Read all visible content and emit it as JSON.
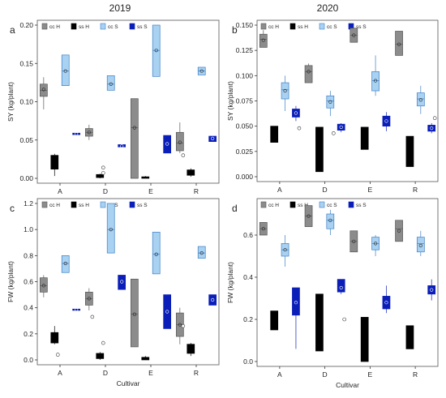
{
  "headers": {
    "left": "2019",
    "right": "2020"
  },
  "series_colors": {
    "cc H": "#8c8c8c",
    "ss H": "#000000",
    "cc S": "#a9d2f2",
    "ss S": "#0b1fb8"
  },
  "chart_data": [
    {
      "panel_label": "a",
      "type": "box",
      "ylabel": "SY (kg/plant)",
      "xlabel": "",
      "ylim": [
        0,
        0.2
      ],
      "yticks": [
        0.0,
        0.05,
        0.1,
        0.15,
        0.2
      ],
      "ytick_labels": [
        "0.00",
        "0.05",
        "0.10",
        "0.15",
        "0.20"
      ],
      "categories": [
        "A",
        "D",
        "E",
        "R"
      ],
      "legend": [
        "cc H",
        "ss H",
        "cc S",
        "ss S"
      ],
      "series": [
        {
          "name": "cc H",
          "values": [
            {
              "q1": 0.107,
              "q3": 0.123,
              "median": 0.115,
              "mean": 0.116,
              "lo": 0.09,
              "hi": 0.132
            },
            {
              "q1": 0.055,
              "q3": 0.065,
              "median": 0.06,
              "mean": 0.06,
              "lo": 0.05,
              "hi": 0.07
            },
            {
              "q1": 0.0,
              "q3": 0.104,
              "median": 0.066,
              "mean": 0.066,
              "lo": 0.0,
              "hi": 0.104
            },
            {
              "q1": 0.036,
              "q3": 0.06,
              "median": 0.046,
              "mean": 0.047,
              "lo": 0.033,
              "hi": 0.073,
              "out": [
                0.03
              ]
            }
          ]
        },
        {
          "name": "ss H",
          "values": [
            {
              "q1": 0.012,
              "q3": 0.03,
              "median": 0.021,
              "mean": 0.021,
              "lo": 0.003,
              "hi": 0.032
            },
            {
              "q1": 0.001,
              "q3": 0.005,
              "median": 0.003,
              "mean": 0.003,
              "lo": 0.0,
              "hi": 0.006,
              "out": [
                0.007,
                0.014
              ]
            },
            {
              "q1": 0.0,
              "q3": 0.002,
              "median": 0.001,
              "mean": 0.001,
              "lo": 0.0,
              "hi": 0.003
            },
            {
              "q1": 0.004,
              "q3": 0.011,
              "median": 0.008,
              "mean": 0.008,
              "lo": 0.002,
              "hi": 0.013
            }
          ]
        },
        {
          "name": "cc S",
          "values": [
            {
              "q1": 0.121,
              "q3": 0.161,
              "median": 0.14,
              "mean": 0.14,
              "lo": 0.121,
              "hi": 0.161
            },
            {
              "q1": 0.115,
              "q3": 0.134,
              "median": 0.123,
              "mean": 0.123,
              "lo": 0.115,
              "hi": 0.134
            },
            {
              "q1": 0.133,
              "q3": 0.2,
              "median": 0.167,
              "mean": 0.167,
              "lo": 0.133,
              "hi": 0.2
            },
            {
              "q1": 0.135,
              "q3": 0.145,
              "median": 0.14,
              "mean": 0.14,
              "lo": 0.135,
              "hi": 0.145
            }
          ]
        },
        {
          "name": "ss S",
          "values": [
            {
              "q1": 0.057,
              "q3": 0.059,
              "median": 0.058,
              "mean": 0.058,
              "lo": 0.057,
              "hi": 0.059
            },
            {
              "q1": 0.041,
              "q3": 0.044,
              "median": 0.042,
              "mean": 0.042,
              "lo": 0.041,
              "hi": 0.044
            },
            {
              "q1": 0.033,
              "q3": 0.056,
              "median": 0.045,
              "mean": 0.045,
              "lo": 0.033,
              "hi": 0.056
            },
            {
              "q1": 0.048,
              "q3": 0.055,
              "median": 0.052,
              "mean": 0.052,
              "lo": 0.048,
              "hi": 0.055
            }
          ]
        }
      ]
    },
    {
      "panel_label": "b",
      "type": "box",
      "ylabel": "SY (kg/plant)",
      "xlabel": "",
      "ylim": [
        0,
        0.15
      ],
      "yticks": [
        0.0,
        0.025,
        0.05,
        0.075,
        0.1,
        0.125,
        0.15
      ],
      "ytick_labels": [
        "0.000",
        "0.025",
        "0.050",
        "0.075",
        "0.100",
        "0.125",
        "0.150"
      ],
      "categories": [
        "A",
        "D",
        "E",
        "R"
      ],
      "legend": [
        "cc H",
        "ss H",
        "cc S",
        "ss S"
      ],
      "series": [
        {
          "name": "cc H",
          "values": [
            {
              "q1": 0.128,
              "q3": 0.141,
              "median": 0.136,
              "mean": 0.135,
              "lo": 0.128,
              "hi": 0.145
            },
            {
              "q1": 0.093,
              "q3": 0.11,
              "median": 0.104,
              "mean": 0.104,
              "lo": 0.093,
              "hi": 0.112
            },
            {
              "q1": 0.133,
              "q3": 0.147,
              "median": 0.14,
              "mean": 0.14,
              "lo": 0.133,
              "hi": 0.147
            },
            {
              "q1": 0.12,
              "q3": 0.144,
              "median": 0.131,
              "mean": 0.131,
              "lo": 0.12,
              "hi": 0.144
            }
          ]
        },
        {
          "name": "ss H",
          "values": [
            {
              "q1": 0.034,
              "q3": 0.05,
              "median": 0.042,
              "mean": 0.042,
              "lo": 0.034,
              "hi": 0.05
            },
            {
              "q1": 0.005,
              "q3": 0.049,
              "median": 0.027,
              "mean": 0.027,
              "lo": 0.005,
              "hi": 0.049
            },
            {
              "q1": 0.027,
              "q3": 0.049,
              "median": 0.038,
              "mean": 0.038,
              "lo": 0.027,
              "hi": 0.049
            },
            {
              "q1": 0.01,
              "q3": 0.04,
              "median": 0.025,
              "mean": 0.025,
              "lo": 0.01,
              "hi": 0.04
            }
          ]
        },
        {
          "name": "cc S",
          "values": [
            {
              "q1": 0.077,
              "q3": 0.093,
              "median": 0.086,
              "mean": 0.085,
              "lo": 0.065,
              "hi": 0.1
            },
            {
              "q1": 0.068,
              "q3": 0.08,
              "median": 0.075,
              "mean": 0.074,
              "lo": 0.06,
              "hi": 0.085,
              "out": [
                0.043
              ]
            },
            {
              "q1": 0.085,
              "q3": 0.104,
              "median": 0.095,
              "mean": 0.095,
              "lo": 0.08,
              "hi": 0.12
            },
            {
              "q1": 0.07,
              "q3": 0.083,
              "median": 0.077,
              "mean": 0.076,
              "lo": 0.062,
              "hi": 0.09
            }
          ]
        },
        {
          "name": "ss S",
          "values": [
            {
              "q1": 0.059,
              "q3": 0.067,
              "median": 0.062,
              "mean": 0.063,
              "lo": 0.055,
              "hi": 0.07,
              "out": [
                0.048
              ]
            },
            {
              "q1": 0.046,
              "q3": 0.052,
              "median": 0.049,
              "mean": 0.049,
              "lo": 0.044,
              "hi": 0.053
            },
            {
              "q1": 0.05,
              "q3": 0.06,
              "median": 0.055,
              "mean": 0.055,
              "lo": 0.045,
              "hi": 0.064
            },
            {
              "q1": 0.045,
              "q3": 0.051,
              "median": 0.048,
              "mean": 0.048,
              "lo": 0.043,
              "hi": 0.053,
              "out": [
                0.058
              ]
            }
          ]
        }
      ]
    },
    {
      "panel_label": "c",
      "type": "box",
      "ylabel": "FW (kg/plant)",
      "xlabel": "Cultivar",
      "ylim": [
        0,
        1.2
      ],
      "yticks": [
        0.0,
        0.2,
        0.4,
        0.6,
        0.8,
        1.0,
        1.2
      ],
      "ytick_labels": [
        "0.0",
        "0.2",
        "0.4",
        "0.6",
        "0.8",
        "1.0",
        "1.2"
      ],
      "categories": [
        "A",
        "D",
        "E",
        "R"
      ],
      "legend": [
        "cc H",
        "ss H",
        "cc S",
        "ss S"
      ],
      "series": [
        {
          "name": "cc H",
          "values": [
            {
              "q1": 0.52,
              "q3": 0.63,
              "median": 0.57,
              "mean": 0.57,
              "lo": 0.48,
              "hi": 0.65
            },
            {
              "q1": 0.42,
              "q3": 0.52,
              "median": 0.47,
              "mean": 0.47,
              "lo": 0.38,
              "hi": 0.55,
              "out": [
                0.33
              ]
            },
            {
              "q1": 0.1,
              "q3": 0.62,
              "median": 0.35,
              "mean": 0.35,
              "lo": 0.1,
              "hi": 0.62
            },
            {
              "q1": 0.18,
              "q3": 0.36,
              "median": 0.27,
              "mean": 0.27,
              "lo": 0.12,
              "hi": 0.4,
              "out": [
                0.26
              ]
            }
          ]
        },
        {
          "name": "ss H",
          "values": [
            {
              "q1": 0.13,
              "q3": 0.21,
              "median": 0.18,
              "mean": 0.17,
              "lo": 0.12,
              "hi": 0.26,
              "out": [
                0.04
              ]
            },
            {
              "q1": 0.01,
              "q3": 0.05,
              "median": 0.03,
              "mean": 0.03,
              "lo": 0.0,
              "hi": 0.06,
              "out": [
                0.13
              ]
            },
            {
              "q1": 0.0,
              "q3": 0.02,
              "median": 0.01,
              "mean": 0.01,
              "lo": 0.0,
              "hi": 0.03
            },
            {
              "q1": 0.05,
              "q3": 0.12,
              "median": 0.09,
              "mean": 0.09,
              "lo": 0.03,
              "hi": 0.13
            }
          ]
        },
        {
          "name": "cc S",
          "values": [
            {
              "q1": 0.67,
              "q3": 0.8,
              "median": 0.74,
              "mean": 0.74,
              "lo": 0.67,
              "hi": 0.8
            },
            {
              "q1": 0.82,
              "q3": 1.2,
              "median": 1.0,
              "mean": 1.0,
              "lo": 0.82,
              "hi": 1.2
            },
            {
              "q1": 0.66,
              "q3": 0.98,
              "median": 0.81,
              "mean": 0.81,
              "lo": 0.66,
              "hi": 0.98
            },
            {
              "q1": 0.78,
              "q3": 0.87,
              "median": 0.82,
              "mean": 0.82,
              "lo": 0.78,
              "hi": 0.87
            }
          ]
        },
        {
          "name": "ss S",
          "values": [
            {
              "q1": 0.38,
              "q3": 0.39,
              "median": 0.385,
              "mean": 0.385,
              "lo": 0.38,
              "hi": 0.39
            },
            {
              "q1": 0.54,
              "q3": 0.65,
              "median": 0.6,
              "mean": 0.6,
              "lo": 0.54,
              "hi": 0.65
            },
            {
              "q1": 0.24,
              "q3": 0.5,
              "median": 0.37,
              "mean": 0.37,
              "lo": 0.24,
              "hi": 0.5
            },
            {
              "q1": 0.42,
              "q3": 0.5,
              "median": 0.46,
              "mean": 0.46,
              "lo": 0.42,
              "hi": 0.5
            }
          ]
        }
      ]
    },
    {
      "panel_label": "d",
      "type": "box",
      "ylabel": "FW (kg/plant)",
      "xlabel": "Cultivar",
      "ylim": [
        0,
        0.75
      ],
      "yticks": [
        0.0,
        0.2,
        0.4,
        0.6
      ],
      "ytick_labels": [
        "0.0",
        "0.2",
        "0.4",
        "0.6"
      ],
      "categories": [
        "A",
        "D",
        "E",
        "R"
      ],
      "legend": [
        "cc H",
        "ss H",
        "cc S",
        "ss S"
      ],
      "series": [
        {
          "name": "cc H",
          "values": [
            {
              "q1": 0.6,
              "q3": 0.66,
              "median": 0.63,
              "mean": 0.63,
              "lo": 0.6,
              "hi": 0.66
            },
            {
              "q1": 0.64,
              "q3": 0.74,
              "median": 0.69,
              "mean": 0.69,
              "lo": 0.64,
              "hi": 0.74
            },
            {
              "q1": 0.52,
              "q3": 0.62,
              "median": 0.57,
              "mean": 0.57,
              "lo": 0.52,
              "hi": 0.62
            },
            {
              "q1": 0.57,
              "q3": 0.67,
              "median": 0.63,
              "mean": 0.62,
              "lo": 0.57,
              "hi": 0.67
            }
          ]
        },
        {
          "name": "ss H",
          "values": [
            {
              "q1": 0.15,
              "q3": 0.24,
              "median": 0.2,
              "mean": 0.2,
              "lo": 0.15,
              "hi": 0.24
            },
            {
              "q1": 0.05,
              "q3": 0.32,
              "median": 0.19,
              "mean": 0.19,
              "lo": 0.05,
              "hi": 0.32
            },
            {
              "q1": 0.0,
              "q3": 0.21,
              "median": 0.1,
              "mean": 0.1,
              "lo": 0.0,
              "hi": 0.21
            },
            {
              "q1": 0.06,
              "q3": 0.17,
              "median": 0.12,
              "mean": 0.12,
              "lo": 0.06,
              "hi": 0.17
            }
          ]
        },
        {
          "name": "cc S",
          "values": [
            {
              "q1": 0.5,
              "q3": 0.56,
              "median": 0.53,
              "mean": 0.53,
              "lo": 0.45,
              "hi": 0.6
            },
            {
              "q1": 0.63,
              "q3": 0.7,
              "median": 0.67,
              "mean": 0.67,
              "lo": 0.6,
              "hi": 0.72
            },
            {
              "q1": 0.53,
              "q3": 0.59,
              "median": 0.56,
              "mean": 0.56,
              "lo": 0.5,
              "hi": 0.6
            },
            {
              "q1": 0.52,
              "q3": 0.59,
              "median": 0.56,
              "mean": 0.55,
              "lo": 0.5,
              "hi": 0.62
            }
          ]
        },
        {
          "name": "ss S",
          "values": [
            {
              "q1": 0.22,
              "q3": 0.35,
              "median": 0.3,
              "mean": 0.28,
              "lo": 0.06,
              "hi": 0.35
            },
            {
              "q1": 0.33,
              "q3": 0.39,
              "median": 0.35,
              "mean": 0.35,
              "lo": 0.32,
              "hi": 0.39,
              "out": [
                0.2
              ]
            },
            {
              "q1": 0.25,
              "q3": 0.31,
              "median": 0.28,
              "mean": 0.28,
              "lo": 0.23,
              "hi": 0.36
            },
            {
              "q1": 0.32,
              "q3": 0.36,
              "median": 0.35,
              "mean": 0.34,
              "lo": 0.29,
              "hi": 0.39
            }
          ]
        }
      ]
    }
  ]
}
